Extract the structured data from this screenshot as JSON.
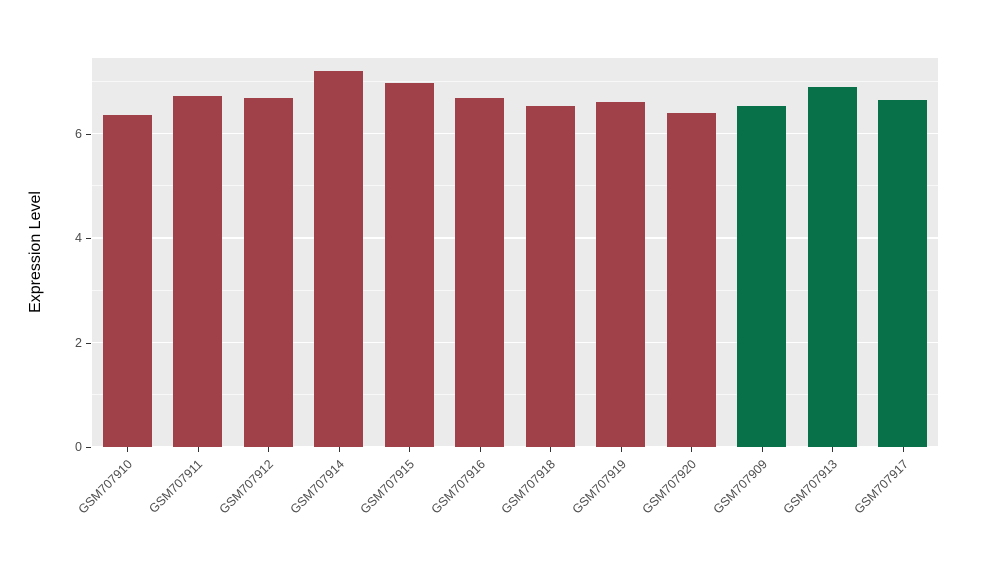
{
  "chart_data": {
    "type": "bar",
    "title": "",
    "xlabel": "",
    "ylabel": "Expression Level",
    "categories": [
      "GSM707910",
      "GSM707911",
      "GSM707912",
      "GSM707914",
      "GSM707915",
      "GSM707916",
      "GSM707918",
      "GSM707919",
      "GSM707920",
      "GSM707909",
      "GSM707913",
      "GSM707917"
    ],
    "values": [
      6.35,
      6.72,
      6.68,
      7.2,
      6.97,
      6.68,
      6.53,
      6.6,
      6.4,
      6.53,
      6.9,
      6.65
    ],
    "groups": [
      "group1",
      "group1",
      "group1",
      "group1",
      "group1",
      "group1",
      "group1",
      "group1",
      "group1",
      "group2",
      "group2",
      "group2"
    ],
    "colors": {
      "group1": "#A04149",
      "group2": "#09714A"
    },
    "ylim": [
      0,
      7.45
    ],
    "yticks": [
      0,
      2,
      4,
      6
    ],
    "minor_ticks": [
      1,
      3,
      5,
      7
    ],
    "grid": "on",
    "legend": "none",
    "panel_background": "#EBEBEB"
  }
}
